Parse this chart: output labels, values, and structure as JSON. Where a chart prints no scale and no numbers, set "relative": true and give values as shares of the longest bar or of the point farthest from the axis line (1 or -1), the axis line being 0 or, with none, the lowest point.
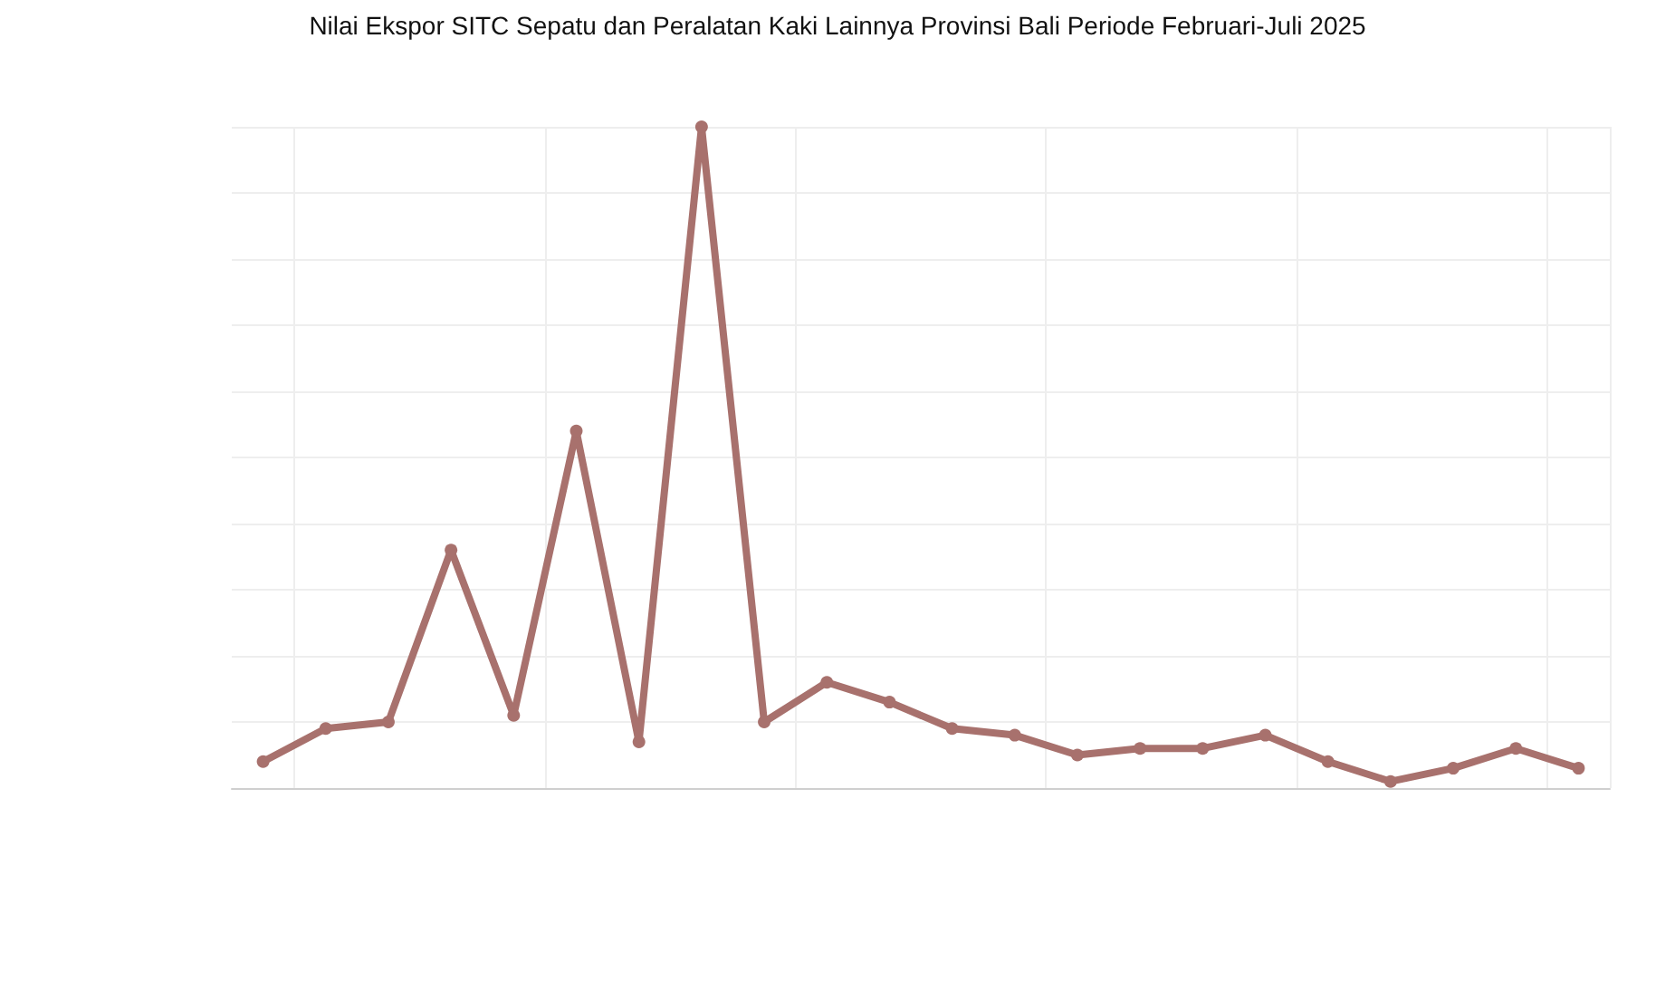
{
  "chart_data": {
    "type": "line",
    "title": "Nilai Ekspor SITC Sepatu dan Peralatan Kaki Lainnya Provinsi Bali Periode Februari-Juli 2025",
    "categories": [
      null,
      null,
      null,
      null,
      null,
      null,
      null,
      null,
      null,
      null,
      null,
      null,
      null,
      null,
      null,
      null,
      null,
      null,
      null,
      null,
      null,
      null
    ],
    "values": [
      0.04,
      0.09,
      0.1,
      0.36,
      0.11,
      0.54,
      0.07,
      1,
      0.1,
      0.16,
      0.13,
      0.09,
      0.08,
      0.05,
      0.06,
      0.06,
      0.08,
      0.04,
      0.01,
      0.03,
      0.06,
      0.03
    ],
    "color": "#a8716d",
    "relative": true,
    "grid": true,
    "marker": "circle"
  }
}
